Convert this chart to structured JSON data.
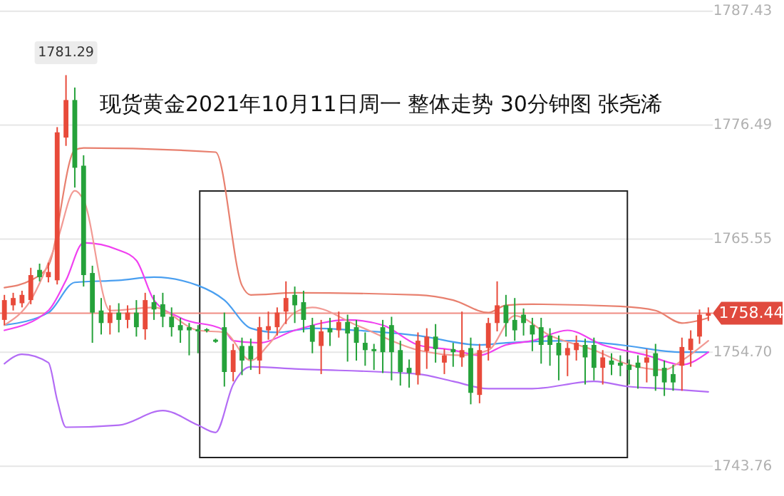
{
  "chart_data": {
    "type": "candlestick",
    "title": "现货黄金2021年10月11日周一 整体走势 30分钟图  张尧浠",
    "categories": [
      null,
      null,
      null,
      null,
      null,
      null,
      null,
      null,
      null,
      null,
      null,
      null,
      null,
      null,
      null,
      null,
      null,
      null,
      null,
      null,
      null,
      null,
      null,
      null,
      null,
      null,
      null,
      null,
      null,
      null,
      null,
      null,
      null,
      null,
      null,
      null,
      null,
      null,
      null,
      null,
      null,
      null,
      null,
      null,
      null,
      null,
      null,
      null,
      null,
      null,
      null,
      null,
      null,
      null,
      null,
      null,
      null,
      null,
      null,
      null,
      null,
      null,
      null,
      null,
      null,
      null,
      null,
      null,
      null,
      null,
      null,
      null,
      null,
      null,
      null,
      null,
      null,
      null,
      null,
      null,
      null
    ],
    "colors": [
      "#e84a3a",
      "#e84a3a",
      "#e84a3a",
      "#e84a3a",
      "#25a23a",
      "#e84a3a",
      "#e84a3a",
      "#e84a3a",
      "#25a23a",
      "#25a23a",
      "#25a23a",
      "#25a23a",
      "#e84a3a",
      "#25a23a",
      "#e84a3a",
      "#25a23a",
      "#e84a3a",
      "#25a23a",
      "#25a23a",
      "#25a23a",
      "#25a23a",
      "#25a23a",
      "#25a23a",
      "#25a23a",
      "#25a23a",
      "#25a23a",
      "#e84a3a",
      "#25a23a",
      "#25a23a",
      "#e84a3a",
      "#e84a3a",
      "#e84a3a",
      "#e84a3a",
      "#25a23a",
      "#25a23a",
      "#25a23a",
      "#e84a3a",
      "#25a23a",
      "#e84a3a",
      "#25a23a",
      "#25a23a",
      "#25a23a",
      "#25a23a",
      "#25a23a",
      "#25a23a",
      "#25a23a",
      "#25a23a",
      "#e84a3a",
      "#e84a3a",
      "#25a23a",
      "#e84a3a",
      "#25a23a",
      "#e84a3a",
      "#25a23a",
      "#e84a3a",
      "#e84a3a",
      "#e84a3a",
      "#25a23a",
      "#25a23a",
      "#25a23a",
      "#25a23a",
      "#25a23a",
      "#25a23a",
      "#25a23a",
      "#e84a3a",
      "#e84a3a",
      "#25a23a",
      "#25a23a",
      "#e84a3a",
      "#25a23a",
      "#25a23a",
      "#25a23a",
      "#25a23a",
      "#e84a3a",
      "#25a23a",
      "#25a23a",
      "#25a23a",
      "#e84a3a",
      "#e84a3a",
      "#e84a3a",
      "#e84a3a"
    ],
    "ohlc": [
      [
        1757.8,
        1760.2,
        1757.3,
        1759.7
      ],
      [
        1759.2,
        1760.4,
        1758.7,
        1759.9
      ],
      [
        1759.4,
        1760.6,
        1759.0,
        1760.2
      ],
      [
        1759.7,
        1762.8,
        1759.3,
        1762.1
      ],
      [
        1762.6,
        1763.2,
        1761.5,
        1761.9
      ],
      [
        1761.9,
        1763.3,
        1761.4,
        1762.4
      ],
      [
        1761.6,
        1776.3,
        1761.2,
        1775.8
      ],
      [
        1775.3,
        1781.29,
        1774.5,
        1778.9
      ],
      [
        1778.9,
        1780.1,
        1770.5,
        1772.4
      ],
      [
        1772.6,
        1773.6,
        1761.0,
        1762.1
      ],
      [
        1762.3,
        1763.0,
        1755.6,
        1758.5
      ],
      [
        1758.7,
        1759.9,
        1756.4,
        1757.5
      ],
      [
        1757.5,
        1759.2,
        1756.4,
        1758.5
      ],
      [
        1758.5,
        1759.4,
        1756.6,
        1757.8
      ],
      [
        1757.8,
        1759.2,
        1757.0,
        1758.5
      ],
      [
        1758.5,
        1759.7,
        1756.2,
        1757.1
      ],
      [
        1756.9,
        1760.4,
        1755.9,
        1759.7
      ],
      [
        1759.5,
        1760.2,
        1757.8,
        1758.8
      ],
      [
        1759.3,
        1760.4,
        1757.1,
        1758.1
      ],
      [
        1758.1,
        1759.0,
        1756.2,
        1757.1
      ],
      [
        1757.3,
        1758.0,
        1755.6,
        1756.8
      ],
      [
        1757.1,
        1757.5,
        1754.4,
        1756.8
      ],
      [
        1756.9,
        1757.3,
        1754.6,
        1756.7
      ],
      [
        1756.9,
        1757.0,
        1756.6,
        1756.8
      ],
      [
        1755.9,
        1756.0,
        1755.6,
        1755.7
      ],
      [
        1757.1,
        1758.5,
        1751.4,
        1752.8
      ],
      [
        1752.8,
        1755.5,
        1751.9,
        1754.9
      ],
      [
        1755.3,
        1756.1,
        1752.5,
        1753.9
      ],
      [
        1755.3,
        1756.0,
        1753.0,
        1754.0
      ],
      [
        1753.9,
        1758.1,
        1752.6,
        1757.1
      ],
      [
        1756.8,
        1758.6,
        1755.9,
        1757.2
      ],
      [
        1757.1,
        1759.0,
        1756.3,
        1758.5
      ],
      [
        1758.6,
        1761.5,
        1757.4,
        1759.9
      ],
      [
        1760.2,
        1761.0,
        1757.5,
        1759.2
      ],
      [
        1759.5,
        1760.6,
        1756.6,
        1757.8
      ],
      [
        1757.3,
        1758.0,
        1754.6,
        1755.7
      ],
      [
        1755.3,
        1757.8,
        1752.6,
        1756.7
      ],
      [
        1757.0,
        1758.0,
        1755.3,
        1756.6
      ],
      [
        1756.8,
        1758.6,
        1756.1,
        1757.6
      ],
      [
        1757.6,
        1758.3,
        1753.8,
        1756.5
      ],
      [
        1757.1,
        1757.8,
        1753.9,
        1755.6
      ],
      [
        1755.6,
        1756.6,
        1753.4,
        1754.9
      ],
      [
        1755.0,
        1755.5,
        1753.0,
        1754.8
      ],
      [
        1757.1,
        1757.8,
        1752.7,
        1754.7
      ],
      [
        1757.3,
        1758.1,
        1752.0,
        1754.7
      ],
      [
        1754.9,
        1755.8,
        1751.5,
        1752.8
      ],
      [
        1753.2,
        1754.0,
        1751.3,
        1752.7
      ],
      [
        1752.5,
        1756.6,
        1751.6,
        1755.8
      ],
      [
        1754.8,
        1757.0,
        1753.1,
        1756.2
      ],
      [
        1756.2,
        1757.4,
        1753.7,
        1755.0
      ],
      [
        1753.7,
        1755.0,
        1752.6,
        1754.4
      ],
      [
        1755.0,
        1755.6,
        1753.3,
        1754.7
      ],
      [
        1754.2,
        1758.6,
        1753.3,
        1754.9
      ],
      [
        1755.1,
        1756.1,
        1749.7,
        1750.8
      ],
      [
        1750.6,
        1755.5,
        1749.8,
        1754.9
      ],
      [
        1755.1,
        1758.0,
        1753.9,
        1757.5
      ],
      [
        1757.5,
        1761.5,
        1756.7,
        1759.2
      ],
      [
        1759.2,
        1760.2,
        1756.2,
        1757.5
      ],
      [
        1757.8,
        1759.9,
        1755.8,
        1756.8
      ],
      [
        1758.3,
        1758.9,
        1756.3,
        1757.5
      ],
      [
        1757.3,
        1758.0,
        1754.8,
        1756.4
      ],
      [
        1757.1,
        1758.0,
        1753.6,
        1755.4
      ],
      [
        1756.3,
        1757.0,
        1753.4,
        1755.4
      ],
      [
        1755.6,
        1756.3,
        1752.0,
        1754.4
      ],
      [
        1754.4,
        1755.6,
        1752.4,
        1755.1
      ],
      [
        1754.9,
        1756.3,
        1753.9,
        1755.6
      ],
      [
        1755.4,
        1756.0,
        1751.6,
        1754.2
      ],
      [
        1755.4,
        1756.1,
        1752.0,
        1753.2
      ],
      [
        1753.2,
        1754.9,
        1751.6,
        1754.2
      ],
      [
        1753.9,
        1754.6,
        1752.5,
        1753.5
      ],
      [
        1753.7,
        1754.4,
        1752.4,
        1753.4
      ],
      [
        1753.5,
        1754.0,
        1751.6,
        1753.0
      ],
      [
        1753.7,
        1754.4,
        1751.2,
        1753.2
      ],
      [
        1753.7,
        1755.0,
        1751.8,
        1754.2
      ],
      [
        1754.6,
        1755.5,
        1751.0,
        1752.4
      ],
      [
        1753.2,
        1753.9,
        1750.5,
        1751.8
      ],
      [
        1752.6,
        1753.5,
        1751.0,
        1751.8
      ],
      [
        1753.4,
        1756.1,
        1751.0,
        1755.2
      ],
      [
        1754.9,
        1756.8,
        1753.3,
        1756.0
      ],
      [
        1756.2,
        1758.8,
        1755.5,
        1758.3
      ],
      [
        1758.2,
        1759.0,
        1757.7,
        1758.44
      ]
    ],
    "series": [
      {
        "type": "line",
        "color": "#e8806f",
        "values": [
          1760.9,
          null,
          null,
          1761.6,
          null,
          1763.0,
          null,
          null,
          1774.1,
          1774.3,
          null,
          null,
          null,
          null,
          null,
          null,
          null,
          null,
          null,
          null,
          null,
          null,
          null,
          null,
          1773.9,
          null,
          null,
          1761.1,
          1760.2,
          null,
          null,
          null,
          null,
          1760.4,
          null,
          null,
          null,
          null,
          null,
          null,
          null,
          null,
          null,
          null,
          null,
          null,
          null,
          1760.2,
          null,
          null,
          null,
          1759.7,
          null,
          null,
          null,
          1758.5,
          null,
          1759.2,
          null,
          null,
          1759.3,
          null,
          null,
          null,
          null,
          null,
          null,
          null,
          null,
          null,
          1759.1,
          null,
          null,
          null,
          1758.7,
          null,
          null,
          1757.5,
          null,
          null,
          1758.0
        ]
      },
      {
        "type": "line",
        "color": "#4a9ff0",
        "values": [
          1757.3,
          null,
          null,
          null,
          null,
          1758.5,
          null,
          null,
          1761.4,
          null,
          null,
          null,
          null,
          1761.6,
          null,
          null,
          null,
          1761.9,
          null,
          null,
          null,
          null,
          1761.1,
          null,
          null,
          1759.7,
          null,
          null,
          1757.0,
          null,
          null,
          1756.6,
          null,
          null,
          null,
          1757.0,
          null,
          null,
          null,
          null,
          1756.8,
          null,
          null,
          null,
          null,
          null,
          null,
          1756.3,
          null,
          null,
          null,
          null,
          null,
          null,
          1755.4,
          null,
          null,
          1755.6,
          null,
          null,
          null,
          null,
          null,
          null,
          1755.8,
          null,
          null,
          null,
          null,
          null,
          1755.4,
          null,
          null,
          null,
          null,
          null,
          null,
          1754.7,
          null,
          null,
          1754.7
        ]
      },
      {
        "type": "line",
        "color": "#b36cf5",
        "values": [
          1753.6,
          null,
          1754.5,
          null,
          null,
          1753.7,
          1750.1,
          1747.5,
          null,
          null,
          null,
          null,
          null,
          1747.7,
          null,
          null,
          null,
          null,
          1749.1,
          null,
          null,
          null,
          1747.7,
          null,
          1747.0,
          null,
          1751.6,
          null,
          1753.3,
          null,
          null,
          null,
          null,
          1753.1,
          null,
          null,
          null,
          null,
          null,
          null,
          null,
          null,
          null,
          null,
          null,
          null,
          null,
          1752.6,
          null,
          null,
          null,
          1751.9,
          null,
          null,
          null,
          1751.2,
          null,
          null,
          null,
          null,
          1751.2,
          null,
          null,
          null,
          null,
          null,
          null,
          1751.9,
          null,
          null,
          null,
          1751.4,
          null,
          null,
          null,
          1751.2,
          null,
          null,
          null,
          null,
          1750.9
        ]
      },
      {
        "type": "line",
        "color": "#f040f0",
        "values": [
          1756.8,
          null,
          null,
          null,
          null,
          1758.7,
          null,
          1761.6,
          null,
          1765.2,
          null,
          null,
          null,
          1764.5,
          null,
          1763.5,
          null,
          1759.7,
          null,
          null,
          1758.0,
          null,
          null,
          null,
          null,
          1756.8,
          1755.8,
          null,
          null,
          1755.6,
          null,
          null,
          null,
          1756.8,
          null,
          null,
          null,
          null,
          null,
          1757.8,
          null,
          null,
          null,
          1757.3,
          null,
          null,
          null,
          1755.4,
          null,
          null,
          null,
          1754.9,
          null,
          null,
          1754.4,
          null,
          null,
          1755.4,
          null,
          null,
          1755.8,
          null,
          null,
          null,
          1756.8,
          null,
          null,
          null,
          1755.4,
          null,
          null,
          null,
          null,
          1754.4,
          null,
          null,
          null,
          1753.5,
          null,
          null,
          1754.7
        ]
      },
      {
        "type": "line",
        "color": "#f29a94",
        "values": [
          1757.3,
          null,
          null,
          1759.7,
          null,
          null,
          1765.4,
          null,
          1770.2,
          1769.3,
          null,
          null,
          1758.7,
          null,
          null,
          null,
          null,
          1759.0,
          null,
          null,
          null,
          null,
          1756.8,
          null,
          null,
          1756.6,
          null,
          null,
          1753.9,
          null,
          1755.4,
          null,
          null,
          1758.5,
          null,
          1759.0,
          null,
          null,
          null,
          null,
          1757.3,
          null,
          null,
          null,
          null,
          null,
          null,
          1754.9,
          null,
          null,
          null,
          null,
          1754.4,
          null,
          null,
          1754.9,
          null,
          null,
          1758.2,
          null,
          null,
          null,
          1756.3,
          null,
          null,
          null,
          null,
          1754.9,
          null,
          null,
          null,
          1753.5,
          null,
          null,
          null,
          1753.0,
          null,
          1753.9,
          null,
          null,
          1755.8
        ]
      }
    ],
    "ylim": [
      1740.9,
      1788.5
    ],
    "yticks": [
      {
        "value": 1787.43,
        "label": "1787.43"
      },
      {
        "value": 1776.49,
        "label": "1776.49"
      },
      {
        "value": 1765.55,
        "label": "1765.55"
      },
      {
        "value": 1754.7,
        "label": "1754.70"
      },
      {
        "value": 1743.76,
        "label": "1743.76"
      }
    ],
    "tick_labels": "y",
    "grid": "y",
    "ref_lines": [
      {
        "axis": "y",
        "value": 1758.44,
        "label": "1758.44",
        "color": "#f08c84"
      }
    ],
    "annotations": [
      "1781.29"
    ]
  }
}
